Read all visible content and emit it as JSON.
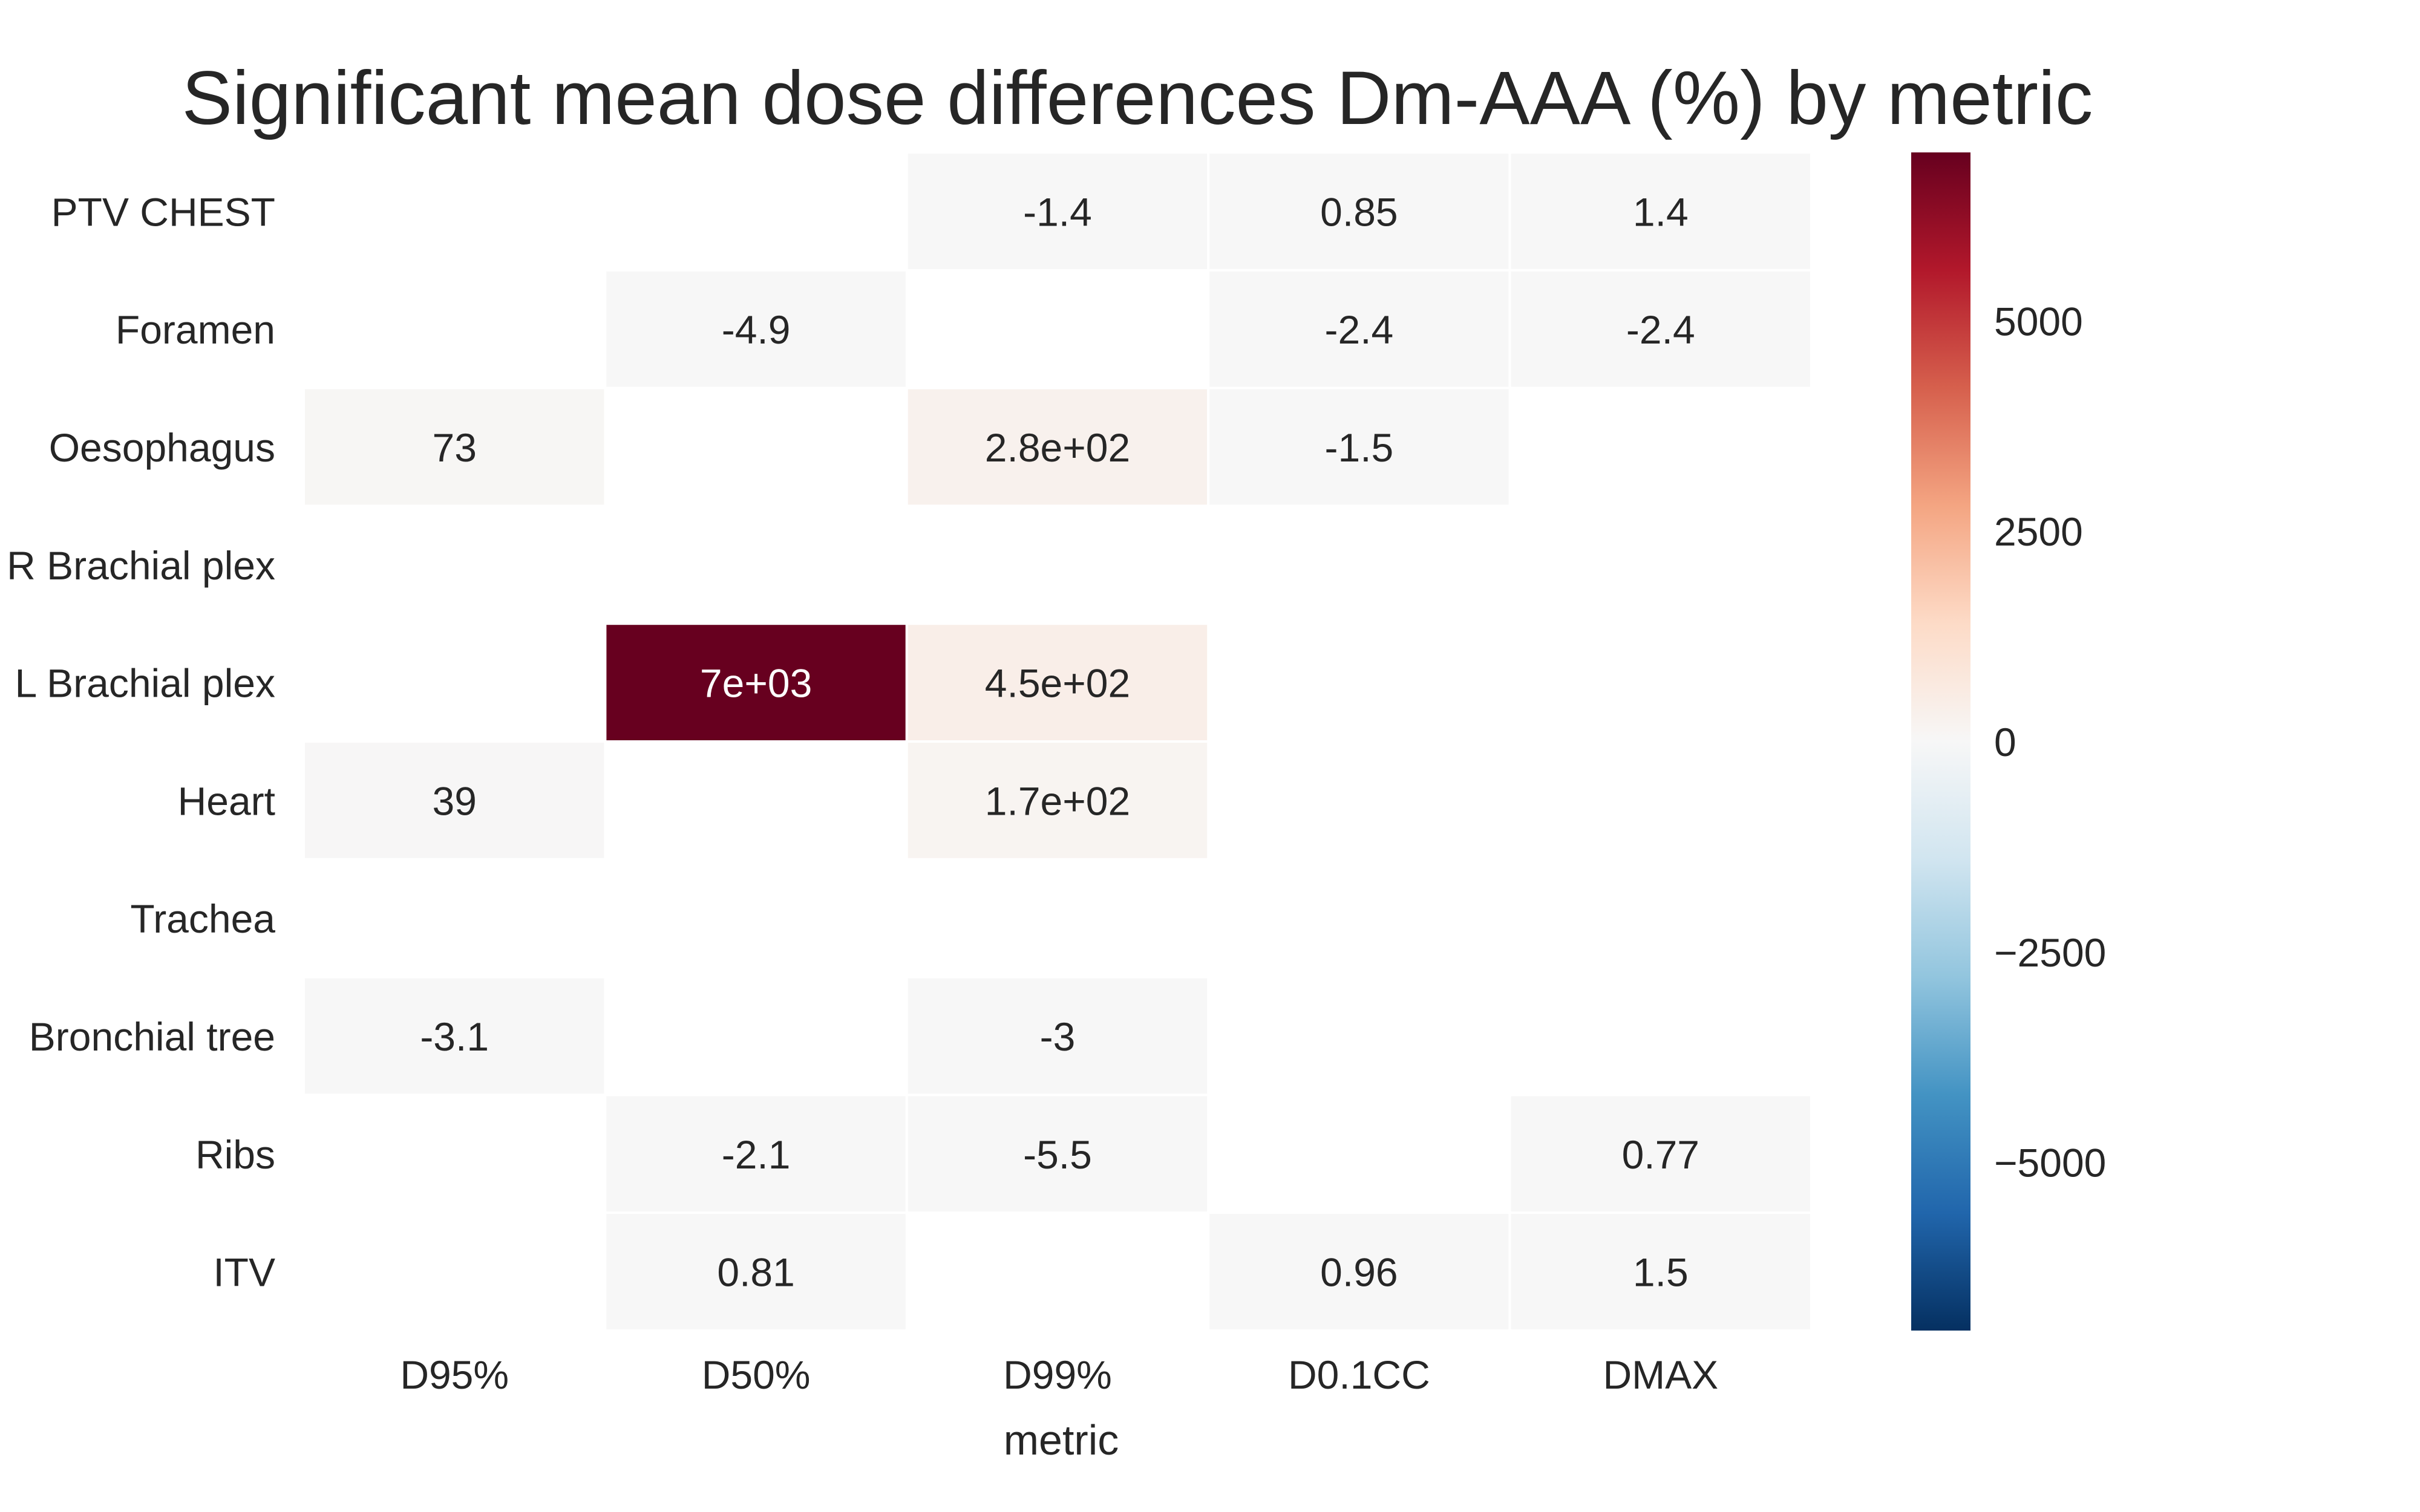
{
  "chart_data": {
    "type": "heatmap",
    "title": "Significant mean dose differences Dm-AAA (%) by metric",
    "xlabel": "metric",
    "ylabel": "",
    "x_categories": [
      "D95%",
      "D50%",
      "D99%",
      "D0.1CC",
      "DMAX"
    ],
    "y_categories": [
      "PTV CHEST",
      "Foramen",
      "Oesophagus",
      "R Brachial plex",
      "L Brachial plex",
      "Heart",
      "Trachea",
      "Bronchial tree",
      "Ribs",
      "ITV"
    ],
    "values": [
      [
        null,
        null,
        -1.4,
        0.85,
        1.4
      ],
      [
        null,
        -4.9,
        null,
        -2.4,
        -2.4
      ],
      [
        73,
        null,
        280,
        -1.5,
        null
      ],
      [
        null,
        null,
        null,
        null,
        null
      ],
      [
        null,
        7000,
        450,
        null,
        null
      ],
      [
        39,
        null,
        170,
        null,
        null
      ],
      [
        null,
        null,
        null,
        null,
        null
      ],
      [
        -3.1,
        null,
        -3,
        null,
        null
      ],
      [
        null,
        -2.1,
        -5.5,
        null,
        0.77
      ],
      [
        null,
        0.81,
        null,
        0.96,
        1.5
      ]
    ],
    "annotations": [
      [
        null,
        null,
        "-1.4",
        "0.85",
        "1.4"
      ],
      [
        null,
        "-4.9",
        null,
        "-2.4",
        "-2.4"
      ],
      [
        "73",
        null,
        "2.8e+02",
        "-1.5",
        null
      ],
      [
        null,
        null,
        null,
        null,
        null
      ],
      [
        null,
        "7e+03",
        "4.5e+02",
        null,
        null
      ],
      [
        "39",
        null,
        "1.7e+02",
        null,
        null
      ],
      [
        null,
        null,
        null,
        null,
        null
      ],
      [
        "-3.1",
        null,
        "-3",
        null,
        null
      ],
      [
        null,
        "-2.1",
        "-5.5",
        null,
        "0.77"
      ],
      [
        null,
        "0.81",
        null,
        "0.96",
        "1.5"
      ]
    ],
    "colorscale": "RdBu_r",
    "vmin": -7000,
    "vmax": 7000,
    "colorbar_ticks": [
      5000,
      2500,
      0,
      -2500,
      -5000
    ],
    "colorbar_tick_labels": [
      "5000",
      "2500",
      "0",
      "−2500",
      "−5000"
    ],
    "grid": false,
    "legend": "colorbar-right"
  }
}
